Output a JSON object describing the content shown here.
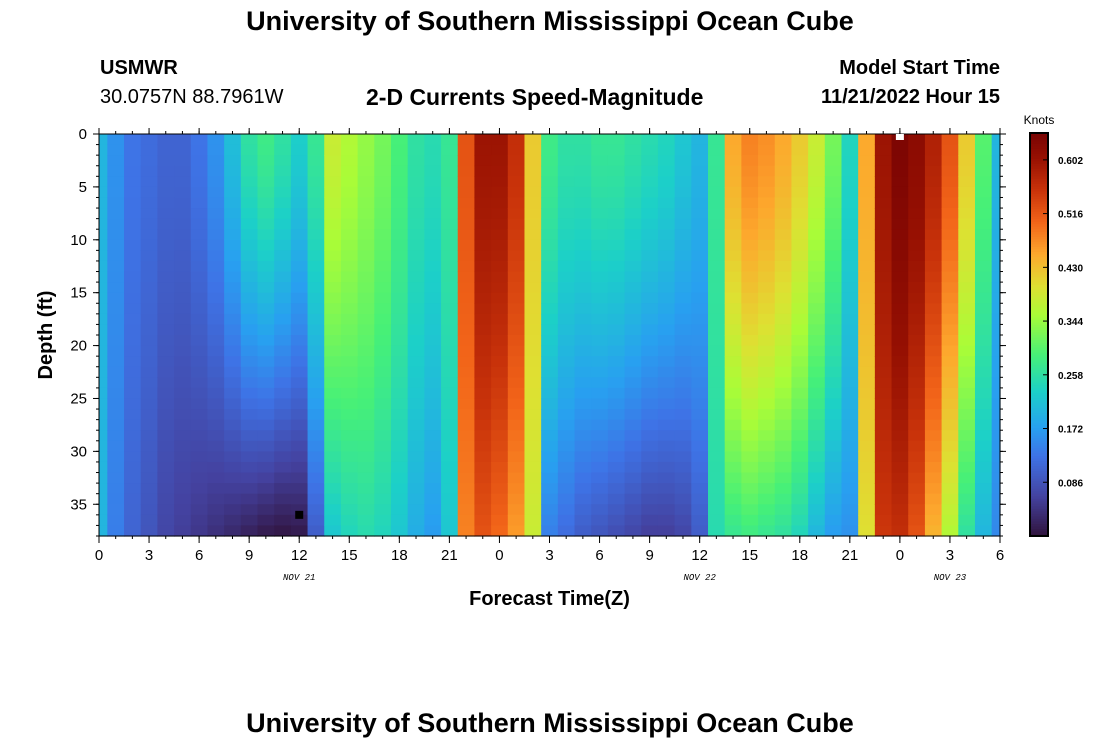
{
  "page": {
    "title": "University of Southern Mississippi Ocean Cube",
    "footer_title": "University of Southern Mississippi Ocean Cube",
    "station": "USMWR",
    "location": "30.0757N  88.7961W",
    "run_label": "Model Start Time",
    "run_value": "11/21/2022 Hour 15"
  },
  "chart_data": {
    "type": "heatmap",
    "title": "2-D Currents Speed-Magnitude",
    "xlabel": "Forecast Time(Z)",
    "ylabel": "Depth (ft)",
    "x_range_hours": [
      0,
      54
    ],
    "y_range_ft": [
      0,
      38
    ],
    "y_inverted": true,
    "x_ticks": [
      {
        "hour": 0,
        "label": "0"
      },
      {
        "hour": 3,
        "label": "3"
      },
      {
        "hour": 6,
        "label": "6"
      },
      {
        "hour": 9,
        "label": "9"
      },
      {
        "hour": 12,
        "label": "12"
      },
      {
        "hour": 15,
        "label": "15"
      },
      {
        "hour": 18,
        "label": "18"
      },
      {
        "hour": 21,
        "label": "21"
      },
      {
        "hour": 24,
        "label": "0"
      },
      {
        "hour": 27,
        "label": "3"
      },
      {
        "hour": 30,
        "label": "6"
      },
      {
        "hour": 33,
        "label": "9"
      },
      {
        "hour": 36,
        "label": "12"
      },
      {
        "hour": 39,
        "label": "15"
      },
      {
        "hour": 42,
        "label": "18"
      },
      {
        "hour": 45,
        "label": "21"
      },
      {
        "hour": 48,
        "label": "0"
      },
      {
        "hour": 51,
        "label": "3"
      },
      {
        "hour": 54,
        "label": "6"
      }
    ],
    "date_labels": [
      {
        "hour": 12,
        "label": "NOV 21"
      },
      {
        "hour": 36,
        "label": "NOV 22"
      },
      {
        "hour": 51,
        "label": "NOV 23"
      }
    ],
    "y_ticks": [
      0,
      5,
      10,
      15,
      20,
      25,
      30,
      35
    ],
    "colorbar": {
      "label": "Knots",
      "min": 0.0,
      "max": 0.645,
      "ticks": [
        0.086,
        0.172,
        0.258,
        0.344,
        0.43,
        0.516,
        0.602
      ]
    },
    "time_columns_hours": [
      0,
      1,
      2,
      3,
      4,
      5,
      6,
      7,
      8,
      9,
      10,
      11,
      12,
      13,
      14,
      15,
      16,
      17,
      18,
      19,
      20,
      21,
      22,
      23,
      24,
      25,
      26,
      27,
      28,
      29,
      30,
      31,
      32,
      33,
      34,
      35,
      36,
      37,
      38,
      39,
      40,
      41,
      42,
      43,
      44,
      45,
      46,
      47,
      48,
      49,
      50,
      51,
      52,
      53,
      54
    ],
    "surface_speed_knots": [
      0.2,
      0.16,
      0.13,
      0.12,
      0.11,
      0.11,
      0.13,
      0.16,
      0.21,
      0.26,
      0.28,
      0.26,
      0.23,
      0.27,
      0.38,
      0.36,
      0.34,
      0.32,
      0.29,
      0.26,
      0.25,
      0.27,
      0.52,
      0.6,
      0.6,
      0.56,
      0.42,
      0.28,
      0.26,
      0.26,
      0.27,
      0.27,
      0.26,
      0.25,
      0.24,
      0.22,
      0.2,
      0.27,
      0.45,
      0.48,
      0.47,
      0.45,
      0.42,
      0.38,
      0.32,
      0.24,
      0.45,
      0.6,
      0.64,
      0.62,
      0.58,
      0.52,
      0.42,
      0.3,
      0.2
    ],
    "bottom_speed_knots": [
      0.2,
      0.14,
      0.11,
      0.09,
      0.07,
      0.06,
      0.05,
      0.04,
      0.03,
      0.02,
      0.01,
      0.005,
      0.01,
      0.1,
      0.22,
      0.24,
      0.25,
      0.24,
      0.22,
      0.19,
      0.17,
      0.22,
      0.48,
      0.52,
      0.5,
      0.46,
      0.38,
      0.14,
      0.12,
      0.1,
      0.09,
      0.08,
      0.07,
      0.06,
      0.06,
      0.07,
      0.1,
      0.25,
      0.27,
      0.28,
      0.27,
      0.26,
      0.24,
      0.2,
      0.17,
      0.16,
      0.4,
      0.55,
      0.56,
      0.52,
      0.44,
      0.36,
      0.26,
      0.2,
      0.15
    ],
    "markers": [
      {
        "hour": 12,
        "depth_ft": 36,
        "color": "#000000"
      },
      {
        "hour": 48,
        "depth_ft": 0,
        "color": "#ffffff"
      }
    ]
  }
}
